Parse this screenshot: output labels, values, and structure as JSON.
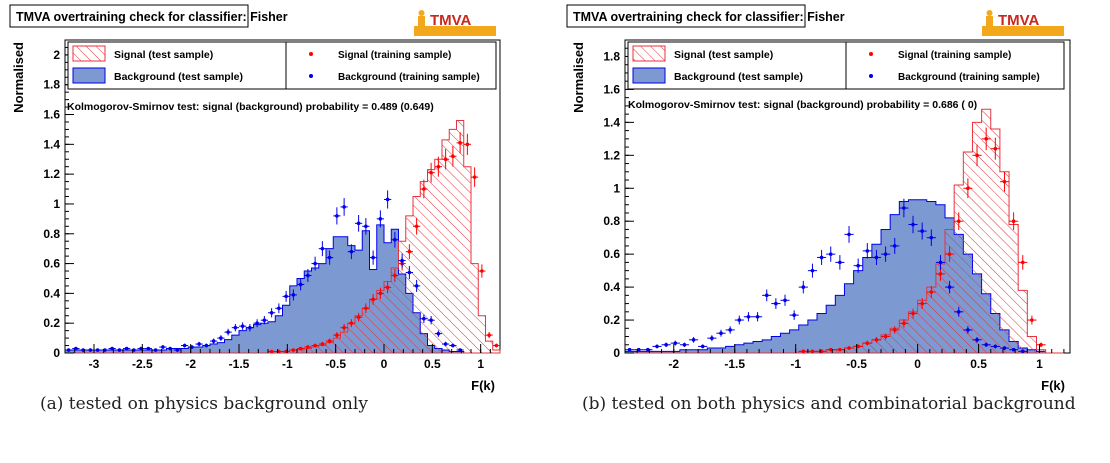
{
  "chart_data": [
    {
      "type": "histogram",
      "title": "TMVA overtraining check for classifier: Fisher",
      "logo": "TMVA",
      "xlabel": "F(k)",
      "ylabel": "Normalised",
      "xlim": [
        -3.3,
        1.2
      ],
      "ylim": [
        0,
        2.1
      ],
      "xticks": [
        -3,
        -2.5,
        -2,
        -1.5,
        -1,
        -0.5,
        0,
        0.5,
        1
      ],
      "xtick_labels": [
        "-3",
        "-2.5",
        "-2",
        "-1.5",
        "-1",
        "-0.5",
        "0",
        "0.5",
        "1"
      ],
      "yticks": [
        0,
        0.2,
        0.4,
        0.6,
        0.8,
        1,
        1.2,
        1.4,
        1.6,
        1.8,
        2
      ],
      "ytick_labels": [
        "0",
        "0.2",
        "0.4",
        "0.6",
        "0.8",
        "1",
        "1.2",
        "1.4",
        "1.6",
        "1.8",
        "2"
      ],
      "legend": {
        "signal_test": "Signal (test sample)",
        "background_test": "Background (test sample)",
        "signal_train": "Signal (training sample)",
        "background_train": "Background (training sample)"
      },
      "ks_text": "Kolmogorov-Smirnov test: signal (background) probability = 0.489 (0.649)",
      "caption": "(a) tested on physics background only",
      "bins": {
        "start": -3.3,
        "width": 0.075,
        "count": 60
      },
      "background_test": [
        0.02,
        0.02,
        0.02,
        0.02,
        0.02,
        0.02,
        0.02,
        0.02,
        0.02,
        0.02,
        0.02,
        0.02,
        0.02,
        0.02,
        0.03,
        0.03,
        0.03,
        0.04,
        0.04,
        0.05,
        0.06,
        0.07,
        0.09,
        0.12,
        0.15,
        0.17,
        0.19,
        0.2,
        0.21,
        0.25,
        0.32,
        0.45,
        0.5,
        0.55,
        0.57,
        0.6,
        0.7,
        0.78,
        0.78,
        0.72,
        0.69,
        0.82,
        0.56,
        0.86,
        0.74,
        0.83,
        0.53,
        0.4,
        0.27,
        0.13,
        0.05,
        0.03,
        0.02,
        0.01,
        0.01,
        0.0,
        0.0,
        0.0,
        0.0,
        0.0
      ],
      "signal_test": [
        0.0,
        0.0,
        0.0,
        0.0,
        0.0,
        0.0,
        0.0,
        0.0,
        0.0,
        0.0,
        0.0,
        0.0,
        0.0,
        0.0,
        0.0,
        0.0,
        0.0,
        0.0,
        0.0,
        0.0,
        0.0,
        0.0,
        0.0,
        0.0,
        0.0,
        0.0,
        0.0,
        0.0,
        0.01,
        0.01,
        0.01,
        0.02,
        0.02,
        0.03,
        0.04,
        0.05,
        0.07,
        0.1,
        0.14,
        0.2,
        0.25,
        0.3,
        0.36,
        0.42,
        0.48,
        0.57,
        0.75,
        0.92,
        1.05,
        1.15,
        1.23,
        1.3,
        1.43,
        1.5,
        1.56,
        1.25,
        0.6,
        0.25,
        0.08,
        0.02
      ],
      "signal_train": [
        0.0,
        0.0,
        0.0,
        0.0,
        0.0,
        0.0,
        0.0,
        0.0,
        0.0,
        0.0,
        0.0,
        0.0,
        0.0,
        0.0,
        0.0,
        0.0,
        0.0,
        0.0,
        0.0,
        0.0,
        0.0,
        0.0,
        0.0,
        0.0,
        0.0,
        0.0,
        0.0,
        0.0,
        0.01,
        0.01,
        0.01,
        0.02,
        0.03,
        0.04,
        0.05,
        0.06,
        0.08,
        0.12,
        0.17,
        0.2,
        0.24,
        0.3,
        0.36,
        0.4,
        0.44,
        0.52,
        0.6,
        0.68,
        0.85,
        1.1,
        1.21,
        1.25,
        1.3,
        1.32,
        1.41,
        1.4,
        1.18,
        0.55,
        0.12,
        0.05
      ],
      "background_train": [
        0.02,
        0.03,
        0.02,
        0.02,
        0.02,
        0.02,
        0.03,
        0.02,
        0.03,
        0.02,
        0.03,
        0.03,
        0.02,
        0.04,
        0.03,
        0.02,
        0.05,
        0.04,
        0.06,
        0.05,
        0.08,
        0.1,
        0.14,
        0.17,
        0.18,
        0.17,
        0.2,
        0.22,
        0.27,
        0.3,
        0.38,
        0.39,
        0.46,
        0.52,
        0.6,
        0.7,
        0.64,
        0.92,
        0.98,
        0.68,
        0.87,
        0.85,
        0.64,
        0.9,
        1.03,
        0.76,
        0.62,
        0.54,
        0.45,
        0.23,
        0.22,
        0.13,
        0.06,
        0.05,
        0.02,
        0.0,
        0.0,
        0.0,
        0.0,
        0.0
      ]
    },
    {
      "type": "histogram",
      "title": "TMVA overtraining check for classifier: Fisher",
      "logo": "TMVA",
      "xlabel": "F(k)",
      "ylabel": "Normalised",
      "xlim": [
        -2.4,
        1.25
      ],
      "ylim": [
        0,
        1.9
      ],
      "xticks": [
        -2,
        -1.5,
        -1,
        -0.5,
        0,
        0.5,
        1
      ],
      "xtick_labels": [
        "-2",
        "-1.5",
        "-1",
        "-0.5",
        "0",
        "0.5",
        "1"
      ],
      "yticks": [
        0,
        0.2,
        0.4,
        0.6,
        0.8,
        1,
        1.2,
        1.4,
        1.6,
        1.8
      ],
      "ytick_labels": [
        "0",
        "0.2",
        "0.4",
        "0.6",
        "0.8",
        "1",
        "1.2",
        "1.4",
        "1.6",
        "1.8"
      ],
      "legend": {
        "signal_test": "Signal (test sample)",
        "background_test": "Background (test sample)",
        "signal_train": "Signal (training sample)",
        "background_train": "Background (training sample)"
      },
      "ks_text": "Kolmogorov-Smirnov test: signal (background) probability = 0.686 (    0)",
      "caption": "(b) tested on both physics and combinatorial background",
      "bins": {
        "start": -2.4,
        "width": 0.075,
        "count": 48
      },
      "background_test": [
        0.01,
        0.01,
        0.01,
        0.01,
        0.01,
        0.01,
        0.02,
        0.02,
        0.02,
        0.03,
        0.03,
        0.04,
        0.05,
        0.06,
        0.07,
        0.08,
        0.1,
        0.12,
        0.14,
        0.17,
        0.2,
        0.24,
        0.29,
        0.35,
        0.42,
        0.5,
        0.58,
        0.66,
        0.75,
        0.84,
        0.92,
        0.93,
        0.93,
        0.92,
        0.9,
        0.82,
        0.72,
        0.6,
        0.48,
        0.36,
        0.24,
        0.14,
        0.07,
        0.03,
        0.02,
        0.01,
        0.0,
        0.0
      ],
      "signal_test": [
        0.0,
        0.0,
        0.0,
        0.0,
        0.0,
        0.0,
        0.0,
        0.0,
        0.0,
        0.0,
        0.0,
        0.0,
        0.0,
        0.0,
        0.0,
        0.0,
        0.0,
        0.0,
        0.0,
        0.01,
        0.01,
        0.01,
        0.02,
        0.02,
        0.03,
        0.04,
        0.06,
        0.08,
        0.11,
        0.15,
        0.2,
        0.25,
        0.32,
        0.4,
        0.54,
        0.75,
        1.02,
        1.22,
        1.4,
        1.48,
        1.36,
        1.1,
        0.78,
        0.38,
        0.1,
        0.02,
        0.0,
        0.0
      ],
      "signal_train": [
        0.0,
        0.0,
        0.0,
        0.0,
        0.0,
        0.0,
        0.0,
        0.0,
        0.0,
        0.0,
        0.0,
        0.0,
        0.0,
        0.0,
        0.0,
        0.0,
        0.0,
        0.0,
        0.0,
        0.01,
        0.01,
        0.01,
        0.02,
        0.02,
        0.03,
        0.04,
        0.06,
        0.08,
        0.1,
        0.14,
        0.18,
        0.24,
        0.3,
        0.37,
        0.48,
        0.6,
        0.8,
        1.0,
        1.2,
        1.3,
        1.24,
        1.04,
        0.8,
        0.55,
        0.2,
        0.05,
        0.0,
        0.0
      ],
      "background_train": [
        0.02,
        0.02,
        0.02,
        0.04,
        0.05,
        0.06,
        0.05,
        0.08,
        0.04,
        0.09,
        0.12,
        0.14,
        0.2,
        0.22,
        0.22,
        0.35,
        0.3,
        0.32,
        0.23,
        0.4,
        0.5,
        0.58,
        0.6,
        0.55,
        0.72,
        0.53,
        0.62,
        0.58,
        0.6,
        0.65,
        0.88,
        0.78,
        0.74,
        0.7,
        0.55,
        0.4,
        0.25,
        0.14,
        0.08,
        0.05,
        0.04,
        0.03,
        0.02,
        0.01,
        0.0,
        0.0,
        0.0,
        0.0
      ]
    }
  ]
}
